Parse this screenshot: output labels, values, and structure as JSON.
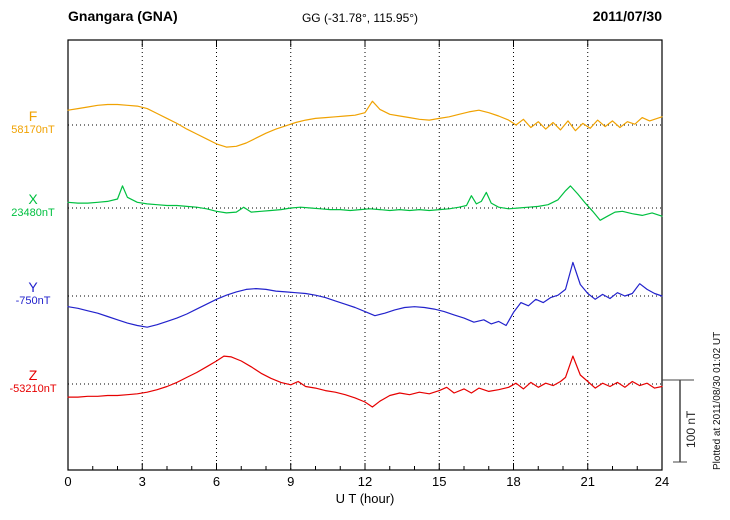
{
  "header": {
    "station": "Gnangara (GNA)",
    "coordinates": "GG (-31.78°, 115.95°)",
    "date": "2011/07/30"
  },
  "axis": {
    "xlabel": "U T (hour)",
    "ticks": [
      0,
      3,
      6,
      9,
      12,
      15,
      18,
      21,
      24
    ]
  },
  "scale_bar": {
    "label": "100 nT",
    "value_nT": 100
  },
  "footer_note": "Plotted at 2011/08/30 01:02 UT",
  "chart_data": {
    "type": "line",
    "title": "Gnangara (GNA) magnetogram",
    "date": "2011/07/30",
    "xlabel": "U T (hour)",
    "x_range": [
      0,
      24
    ],
    "x_ticks": [
      0,
      3,
      6,
      9,
      12,
      15,
      18,
      21,
      24
    ],
    "scale_bar_nT": 100,
    "grid": "dotted vertical lines every 3 hours; dotted horizontal baseline per trace",
    "series": [
      {
        "name": "F",
        "color": "#f0a202",
        "baseline_label": "58170nT",
        "baseline_nT": 58170,
        "units": "nT offset from baseline",
        "points": [
          [
            0,
            18
          ],
          [
            0.4,
            20
          ],
          [
            0.8,
            22
          ],
          [
            1.2,
            24
          ],
          [
            1.6,
            25
          ],
          [
            2.0,
            25
          ],
          [
            2.4,
            24
          ],
          [
            2.8,
            23
          ],
          [
            3.2,
            20
          ],
          [
            3.6,
            14
          ],
          [
            4.0,
            8
          ],
          [
            4.4,
            2
          ],
          [
            4.8,
            -5
          ],
          [
            5.2,
            -11
          ],
          [
            5.6,
            -17
          ],
          [
            6.0,
            -23
          ],
          [
            6.4,
            -27
          ],
          [
            6.8,
            -26
          ],
          [
            7.2,
            -22
          ],
          [
            7.6,
            -16
          ],
          [
            8.0,
            -10
          ],
          [
            8.4,
            -5
          ],
          [
            8.8,
            -1
          ],
          [
            9.2,
            3
          ],
          [
            9.6,
            6
          ],
          [
            10.0,
            8
          ],
          [
            10.4,
            9
          ],
          [
            10.8,
            10
          ],
          [
            11.2,
            11
          ],
          [
            11.6,
            12
          ],
          [
            12.0,
            15
          ],
          [
            12.3,
            29
          ],
          [
            12.6,
            19
          ],
          [
            13.0,
            13
          ],
          [
            13.4,
            11
          ],
          [
            13.8,
            9
          ],
          [
            14.2,
            7
          ],
          [
            14.6,
            6
          ],
          [
            15.0,
            8
          ],
          [
            15.4,
            10
          ],
          [
            15.8,
            13
          ],
          [
            16.2,
            16
          ],
          [
            16.6,
            18
          ],
          [
            17.0,
            15
          ],
          [
            17.4,
            11
          ],
          [
            17.8,
            6
          ],
          [
            18.1,
            0
          ],
          [
            18.4,
            7
          ],
          [
            18.7,
            -3
          ],
          [
            19.0,
            4
          ],
          [
            19.3,
            -5
          ],
          [
            19.6,
            3
          ],
          [
            19.9,
            -6
          ],
          [
            20.2,
            5
          ],
          [
            20.5,
            -7
          ],
          [
            20.8,
            2
          ],
          [
            21.1,
            -4
          ],
          [
            21.4,
            6
          ],
          [
            21.7,
            -2
          ],
          [
            22.0,
            5
          ],
          [
            22.3,
            -3
          ],
          [
            22.6,
            4
          ],
          [
            22.9,
            1
          ],
          [
            23.2,
            9
          ],
          [
            23.5,
            5
          ],
          [
            23.8,
            8
          ],
          [
            24.0,
            10
          ]
        ]
      },
      {
        "name": "X",
        "color": "#00c040",
        "baseline_label": "23480nT",
        "baseline_nT": 23480,
        "units": "nT offset from baseline",
        "points": [
          [
            0,
            7
          ],
          [
            0.4,
            6
          ],
          [
            0.8,
            6
          ],
          [
            1.2,
            7
          ],
          [
            1.6,
            8
          ],
          [
            2.0,
            11
          ],
          [
            2.2,
            27
          ],
          [
            2.4,
            13
          ],
          [
            2.8,
            7
          ],
          [
            3.2,
            5
          ],
          [
            3.6,
            4
          ],
          [
            4.0,
            3
          ],
          [
            4.4,
            3
          ],
          [
            4.8,
            2
          ],
          [
            5.2,
            1
          ],
          [
            5.6,
            -1
          ],
          [
            6.0,
            -4
          ],
          [
            6.4,
            -6
          ],
          [
            6.8,
            -5
          ],
          [
            7.1,
            1
          ],
          [
            7.4,
            -5
          ],
          [
            7.8,
            -4
          ],
          [
            8.2,
            -3
          ],
          [
            8.6,
            -2
          ],
          [
            9.0,
            0
          ],
          [
            9.4,
            1
          ],
          [
            9.8,
            0
          ],
          [
            10.2,
            -1
          ],
          [
            10.6,
            -2
          ],
          [
            11.0,
            -2
          ],
          [
            11.4,
            -3
          ],
          [
            11.8,
            -2
          ],
          [
            12.2,
            -1
          ],
          [
            12.6,
            -2
          ],
          [
            13.0,
            -3
          ],
          [
            13.4,
            -2
          ],
          [
            13.8,
            -3
          ],
          [
            14.2,
            -2
          ],
          [
            14.6,
            -3
          ],
          [
            15.0,
            -2
          ],
          [
            15.4,
            -1
          ],
          [
            15.8,
            1
          ],
          [
            16.1,
            3
          ],
          [
            16.3,
            15
          ],
          [
            16.5,
            5
          ],
          [
            16.7,
            8
          ],
          [
            16.9,
            19
          ],
          [
            17.1,
            6
          ],
          [
            17.4,
            1
          ],
          [
            17.8,
            -1
          ],
          [
            18.2,
            0
          ],
          [
            18.6,
            1
          ],
          [
            19.0,
            2
          ],
          [
            19.4,
            4
          ],
          [
            19.8,
            10
          ],
          [
            20.1,
            21
          ],
          [
            20.3,
            27
          ],
          [
            20.6,
            17
          ],
          [
            20.9,
            6
          ],
          [
            21.2,
            -4
          ],
          [
            21.5,
            -15
          ],
          [
            21.8,
            -10
          ],
          [
            22.1,
            -5
          ],
          [
            22.4,
            -4
          ],
          [
            22.8,
            -7
          ],
          [
            23.2,
            -9
          ],
          [
            23.6,
            -6
          ],
          [
            24.0,
            -10
          ]
        ]
      },
      {
        "name": "Y",
        "color": "#2222cc",
        "baseline_label": "-750nT",
        "baseline_nT": -750,
        "units": "nT offset from baseline",
        "points": [
          [
            0,
            -13
          ],
          [
            0.4,
            -15
          ],
          [
            0.8,
            -18
          ],
          [
            1.2,
            -21
          ],
          [
            1.6,
            -25
          ],
          [
            2.0,
            -29
          ],
          [
            2.4,
            -33
          ],
          [
            2.8,
            -36
          ],
          [
            3.2,
            -38
          ],
          [
            3.6,
            -35
          ],
          [
            4.0,
            -31
          ],
          [
            4.4,
            -27
          ],
          [
            4.8,
            -22
          ],
          [
            5.2,
            -16
          ],
          [
            5.6,
            -10
          ],
          [
            6.0,
            -4
          ],
          [
            6.4,
            1
          ],
          [
            6.8,
            5
          ],
          [
            7.2,
            8
          ],
          [
            7.6,
            9
          ],
          [
            8.0,
            8
          ],
          [
            8.4,
            6
          ],
          [
            8.8,
            5
          ],
          [
            9.2,
            4
          ],
          [
            9.6,
            3
          ],
          [
            10.0,
            1
          ],
          [
            10.4,
            -2
          ],
          [
            10.8,
            -6
          ],
          [
            11.2,
            -10
          ],
          [
            11.6,
            -14
          ],
          [
            12.0,
            -19
          ],
          [
            12.4,
            -24
          ],
          [
            12.8,
            -21
          ],
          [
            13.2,
            -17
          ],
          [
            13.6,
            -14
          ],
          [
            14.0,
            -13
          ],
          [
            14.4,
            -14
          ],
          [
            14.8,
            -16
          ],
          [
            15.2,
            -19
          ],
          [
            15.6,
            -23
          ],
          [
            16.0,
            -27
          ],
          [
            16.4,
            -32
          ],
          [
            16.8,
            -29
          ],
          [
            17.1,
            -34
          ],
          [
            17.4,
            -31
          ],
          [
            17.7,
            -36
          ],
          [
            18.0,
            -20
          ],
          [
            18.3,
            -8
          ],
          [
            18.6,
            -12
          ],
          [
            18.9,
            -4
          ],
          [
            19.2,
            -8
          ],
          [
            19.5,
            -2
          ],
          [
            19.8,
            1
          ],
          [
            20.1,
            8
          ],
          [
            20.4,
            41
          ],
          [
            20.7,
            14
          ],
          [
            21.0,
            3
          ],
          [
            21.3,
            -4
          ],
          [
            21.6,
            2
          ],
          [
            21.9,
            -3
          ],
          [
            22.2,
            4
          ],
          [
            22.5,
            0
          ],
          [
            22.8,
            3
          ],
          [
            23.1,
            15
          ],
          [
            23.4,
            8
          ],
          [
            23.7,
            3
          ],
          [
            24.0,
            0
          ]
        ]
      },
      {
        "name": "Z",
        "color": "#e60000",
        "baseline_label": "-53210nT",
        "baseline_nT": -53210,
        "units": "nT offset from baseline",
        "points": [
          [
            0,
            -16
          ],
          [
            0.4,
            -16
          ],
          [
            0.8,
            -15
          ],
          [
            1.2,
            -15
          ],
          [
            1.6,
            -14
          ],
          [
            2.0,
            -14
          ],
          [
            2.4,
            -13
          ],
          [
            2.8,
            -12
          ],
          [
            3.2,
            -10
          ],
          [
            3.6,
            -7
          ],
          [
            4.0,
            -3
          ],
          [
            4.4,
            2
          ],
          [
            4.8,
            8
          ],
          [
            5.2,
            14
          ],
          [
            5.6,
            21
          ],
          [
            6.0,
            28
          ],
          [
            6.3,
            34
          ],
          [
            6.6,
            33
          ],
          [
            7.0,
            28
          ],
          [
            7.4,
            21
          ],
          [
            7.8,
            13
          ],
          [
            8.2,
            7
          ],
          [
            8.6,
            2
          ],
          [
            9.0,
            -1
          ],
          [
            9.3,
            3
          ],
          [
            9.6,
            -3
          ],
          [
            10.0,
            -5
          ],
          [
            10.4,
            -8
          ],
          [
            10.8,
            -10
          ],
          [
            11.2,
            -13
          ],
          [
            11.6,
            -17
          ],
          [
            12.0,
            -22
          ],
          [
            12.3,
            -28
          ],
          [
            12.6,
            -21
          ],
          [
            13.0,
            -14
          ],
          [
            13.4,
            -11
          ],
          [
            13.8,
            -13
          ],
          [
            14.2,
            -10
          ],
          [
            14.6,
            -12
          ],
          [
            15.0,
            -8
          ],
          [
            15.3,
            -4
          ],
          [
            15.6,
            -11
          ],
          [
            16.0,
            -6
          ],
          [
            16.3,
            -11
          ],
          [
            16.6,
            -5
          ],
          [
            17.0,
            -9
          ],
          [
            17.4,
            -7
          ],
          [
            17.8,
            -4
          ],
          [
            18.1,
            1
          ],
          [
            18.4,
            -6
          ],
          [
            18.7,
            2
          ],
          [
            19.0,
            -4
          ],
          [
            19.3,
            1
          ],
          [
            19.6,
            -2
          ],
          [
            19.9,
            3
          ],
          [
            20.1,
            8
          ],
          [
            20.4,
            34
          ],
          [
            20.7,
            11
          ],
          [
            21.0,
            3
          ],
          [
            21.3,
            -5
          ],
          [
            21.6,
            1
          ],
          [
            21.9,
            -3
          ],
          [
            22.2,
            2
          ],
          [
            22.5,
            -4
          ],
          [
            22.8,
            3
          ],
          [
            23.1,
            -2
          ],
          [
            23.4,
            1
          ],
          [
            23.7,
            -5
          ],
          [
            24.0,
            -3
          ]
        ]
      }
    ]
  }
}
